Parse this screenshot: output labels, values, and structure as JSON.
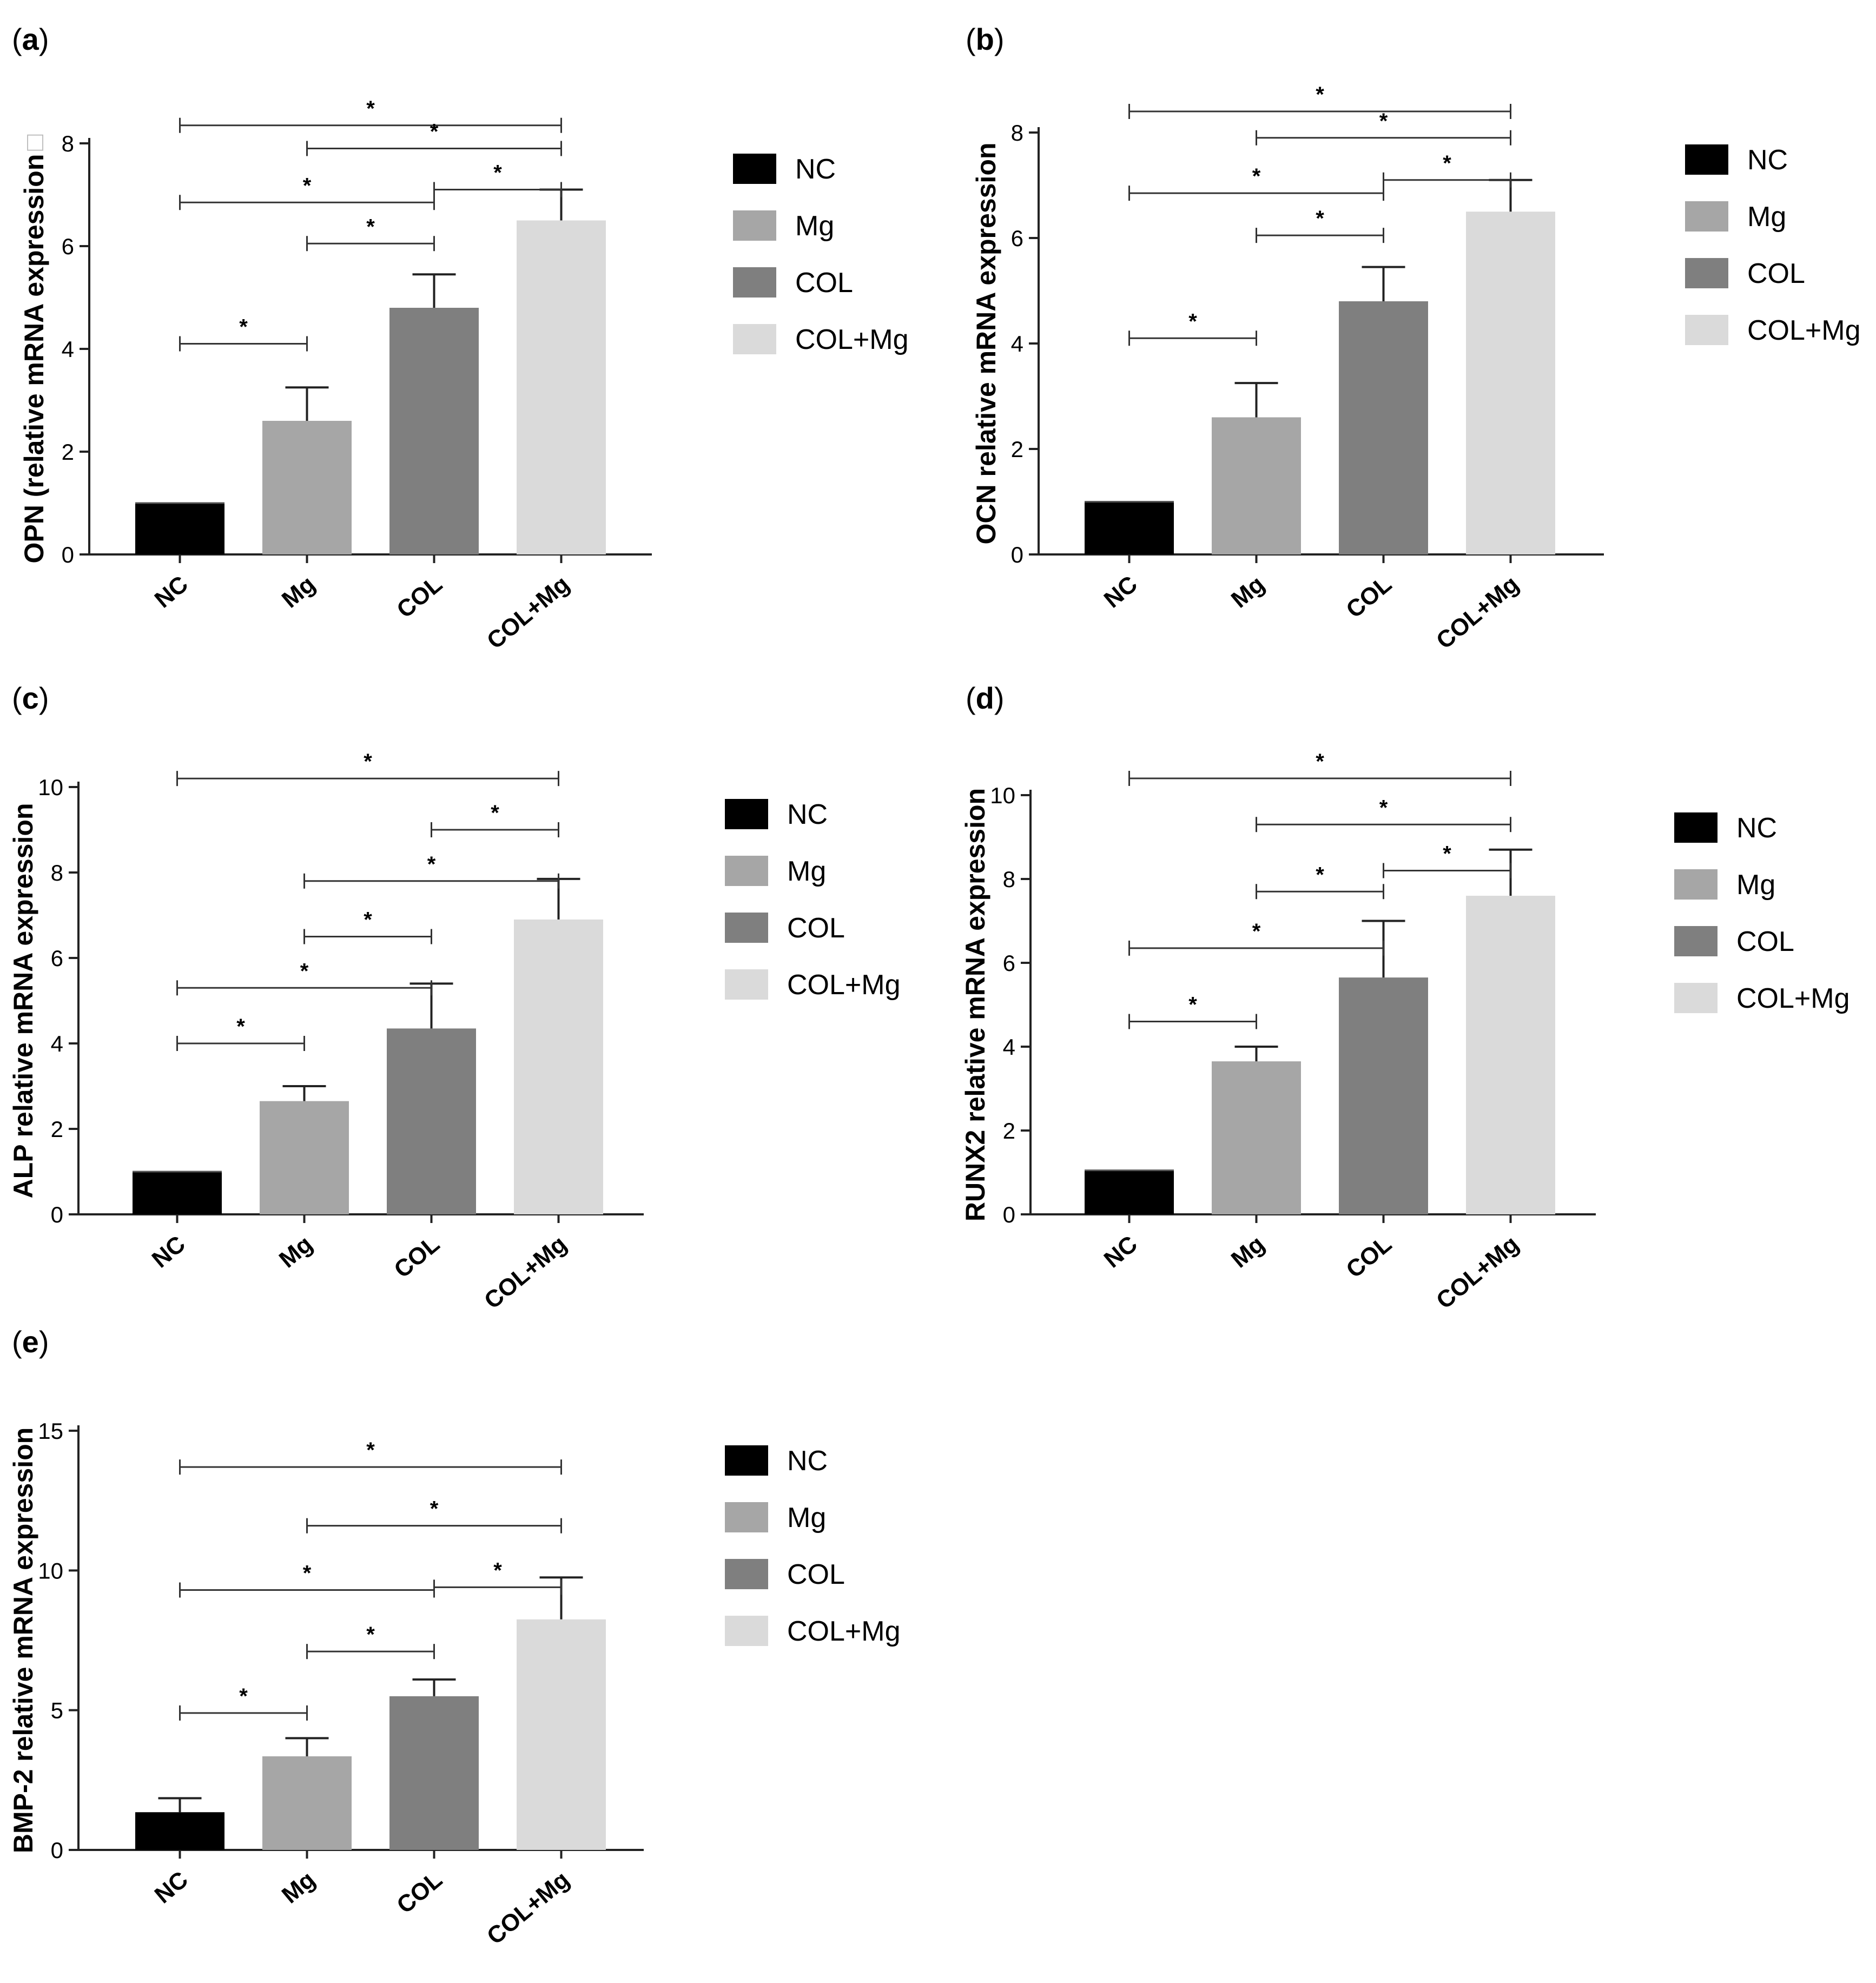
{
  "figure": {
    "colors": {
      "NC": "#000000",
      "Mg": "#a6a6a6",
      "COL": "#7f7f7f",
      "COL+Mg": "#dadada",
      "axis": "#222222",
      "bracket": "#333333"
    }
  },
  "chart_data": [
    {
      "type": "bar",
      "panel": "a",
      "panel_open": "(",
      "panel_letter": "a",
      "panel_close": ")",
      "ylabel": "OPN (relative mRNA expression",
      "ylabel_tail": "□",
      "categories": [
        "NC",
        "Mg",
        "COL",
        "COL+Mg"
      ],
      "values": [
        1.0,
        2.6,
        4.8,
        6.5
      ],
      "errors": [
        0.0,
        0.65,
        0.65,
        0.6
      ],
      "ylim": [
        0,
        8
      ],
      "yticks": [
        0,
        2,
        4,
        6,
        8
      ],
      "legend": [
        "NC",
        "Mg",
        "COL",
        "COL+Mg"
      ],
      "significance": [
        {
          "from": 0,
          "to": 3,
          "y": 8.35,
          "label": "*"
        },
        {
          "from": 1,
          "to": 3,
          "y": 7.9,
          "label": "*"
        },
        {
          "from": 2,
          "to": 3,
          "y": 7.1,
          "label": "*"
        },
        {
          "from": 0,
          "to": 2,
          "y": 6.85,
          "label": "*"
        },
        {
          "from": 1,
          "to": 2,
          "y": 6.05,
          "label": "*"
        },
        {
          "from": 0,
          "to": 1,
          "y": 4.1,
          "label": "*"
        }
      ]
    },
    {
      "type": "bar",
      "panel": "b",
      "panel_open": "(",
      "panel_letter": "b",
      "panel_close": ")",
      "ylabel": "OCN relative mRNA expression",
      "categories": [
        "NC",
        "Mg",
        "COL",
        "COL+Mg"
      ],
      "values": [
        1.0,
        2.6,
        4.8,
        6.5
      ],
      "errors": [
        0.0,
        0.65,
        0.65,
        0.6
      ],
      "ylim": [
        0,
        8
      ],
      "yticks": [
        0,
        2,
        4,
        6,
        8
      ],
      "legend": [
        "NC",
        "Mg",
        "COL",
        "COL+Mg"
      ],
      "significance": [
        {
          "from": 0,
          "to": 3,
          "y": 8.4,
          "label": "*"
        },
        {
          "from": 1,
          "to": 3,
          "y": 7.9,
          "label": "*"
        },
        {
          "from": 2,
          "to": 3,
          "y": 7.1,
          "label": "*"
        },
        {
          "from": 0,
          "to": 2,
          "y": 6.85,
          "label": "*"
        },
        {
          "from": 1,
          "to": 2,
          "y": 6.05,
          "label": "*"
        },
        {
          "from": 0,
          "to": 1,
          "y": 4.1,
          "label": "*"
        }
      ]
    },
    {
      "type": "bar",
      "panel": "c",
      "panel_open": "(",
      "panel_letter": "c",
      "panel_close": ")",
      "ylabel": "ALP relative mRNA expression",
      "categories": [
        "NC",
        "Mg",
        "COL",
        "COL+Mg"
      ],
      "values": [
        1.0,
        2.65,
        4.35,
        6.9
      ],
      "errors": [
        0.0,
        0.35,
        1.05,
        0.95
      ],
      "ylim": [
        0,
        10
      ],
      "yticks": [
        0,
        2,
        4,
        6,
        8,
        10
      ],
      "legend": [
        "NC",
        "Mg",
        "COL",
        "COL+Mg"
      ],
      "significance": [
        {
          "from": 0,
          "to": 3,
          "y": 10.2,
          "label": "*"
        },
        {
          "from": 2,
          "to": 3,
          "y": 9.0,
          "label": "*"
        },
        {
          "from": 1,
          "to": 3,
          "y": 7.8,
          "label": "*"
        },
        {
          "from": 1,
          "to": 2,
          "y": 6.5,
          "label": "*"
        },
        {
          "from": 0,
          "to": 2,
          "y": 5.3,
          "label": "*"
        },
        {
          "from": 0,
          "to": 1,
          "y": 4.0,
          "label": "*"
        }
      ]
    },
    {
      "type": "bar",
      "panel": "d",
      "panel_open": "(",
      "panel_letter": "d",
      "panel_close": ")",
      "ylabel": "RUNX2 relative mRNA expression",
      "categories": [
        "NC",
        "Mg",
        "COL",
        "COL+Mg"
      ],
      "values": [
        1.05,
        3.65,
        5.65,
        7.6
      ],
      "errors": [
        0.0,
        0.35,
        1.35,
        1.1
      ],
      "ylim": [
        0,
        10
      ],
      "yticks": [
        0,
        2,
        4,
        6,
        8,
        10
      ],
      "legend": [
        "NC",
        "Mg",
        "COL",
        "COL+Mg"
      ],
      "significance": [
        {
          "from": 0,
          "to": 3,
          "y": 10.4,
          "label": "*"
        },
        {
          "from": 1,
          "to": 3,
          "y": 9.3,
          "label": "*"
        },
        {
          "from": 2,
          "to": 3,
          "y": 8.2,
          "label": "*"
        },
        {
          "from": 1,
          "to": 2,
          "y": 7.7,
          "label": "*"
        },
        {
          "from": 0,
          "to": 2,
          "y": 6.35,
          "label": "*"
        },
        {
          "from": 0,
          "to": 1,
          "y": 4.6,
          "label": "*"
        }
      ]
    },
    {
      "type": "bar",
      "panel": "e",
      "panel_open": "(",
      "panel_letter": "e",
      "panel_close": ")",
      "ylabel": "BMP-2 relative mRNA expression",
      "categories": [
        "NC",
        "Mg",
        "COL",
        "COL+Mg"
      ],
      "values": [
        1.35,
        3.35,
        5.5,
        8.25
      ],
      "errors": [
        0.5,
        0.65,
        0.6,
        1.5
      ],
      "ylim": [
        0,
        15
      ],
      "yticks": [
        0,
        5,
        10,
        15
      ],
      "legend": [
        "NC",
        "Mg",
        "COL",
        "COL+Mg"
      ],
      "significance": [
        {
          "from": 0,
          "to": 3,
          "y": 13.7,
          "label": "*"
        },
        {
          "from": 1,
          "to": 3,
          "y": 11.6,
          "label": "*"
        },
        {
          "from": 2,
          "to": 3,
          "y": 9.4,
          "label": "*"
        },
        {
          "from": 0,
          "to": 2,
          "y": 9.3,
          "label": "*"
        },
        {
          "from": 1,
          "to": 2,
          "y": 7.1,
          "label": "*"
        },
        {
          "from": 0,
          "to": 1,
          "y": 4.9,
          "label": "*"
        }
      ]
    }
  ]
}
